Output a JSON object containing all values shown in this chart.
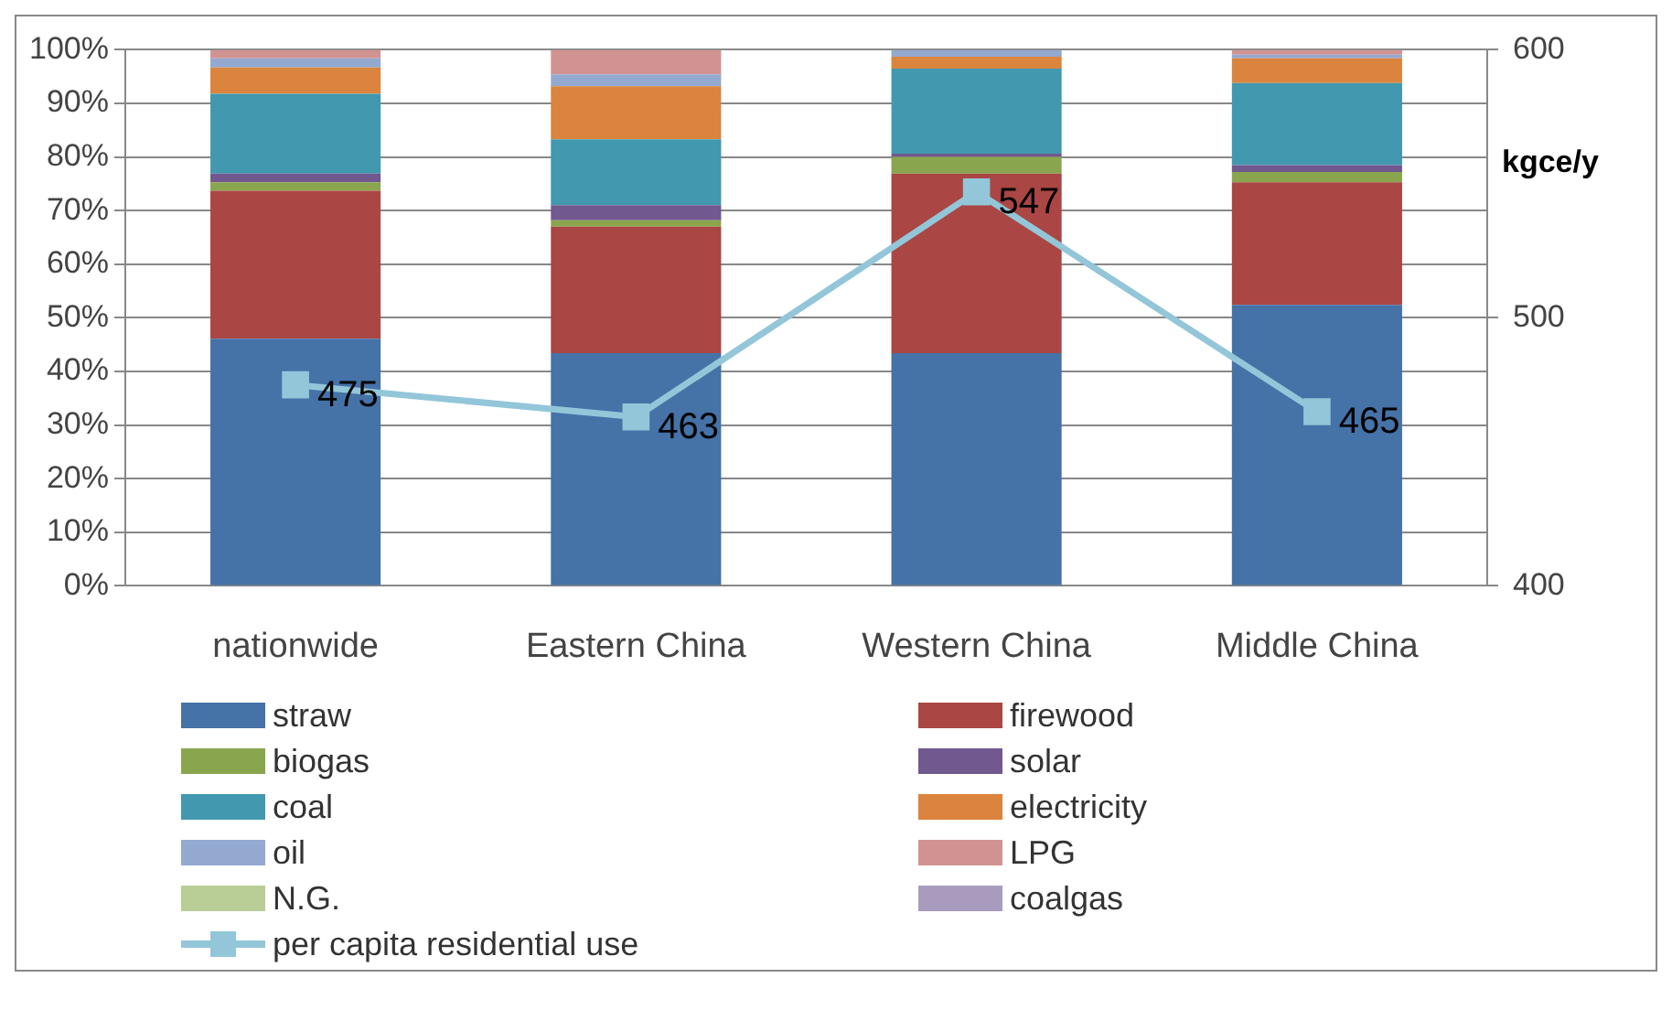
{
  "chart_data": {
    "type": "bar",
    "stacked": true,
    "categories": [
      "nationwide",
      "Eastern China",
      "Western China",
      "Middle China"
    ],
    "series": [
      {
        "name": "straw",
        "color": "#4572a7",
        "values": [
          46.1,
          43.4,
          43.4,
          52.4
        ]
      },
      {
        "name": "firewood",
        "color": "#aa4643",
        "values": [
          27.6,
          23.6,
          33.5,
          22.9
        ]
      },
      {
        "name": "biogas",
        "color": "#89a54e",
        "values": [
          1.6,
          1.2,
          3.1,
          1.9
        ]
      },
      {
        "name": "solar",
        "color": "#71588f",
        "values": [
          1.6,
          2.8,
          0.6,
          1.3
        ]
      },
      {
        "name": "coal",
        "color": "#4198af",
        "values": [
          14.9,
          12.3,
          15.9,
          15.3
        ]
      },
      {
        "name": "electricity",
        "color": "#db843d",
        "values": [
          4.9,
          9.9,
          2.2,
          4.6
        ]
      },
      {
        "name": "oil",
        "color": "#93a9cf",
        "values": [
          1.7,
          2.2,
          1.3,
          0.7
        ]
      },
      {
        "name": "LPG",
        "color": "#d19392",
        "values": [
          1.6,
          4.6,
          0,
          0.9
        ]
      },
      {
        "name": "N.G.",
        "color": "#b9cd96",
        "values": [
          0,
          0,
          0,
          0
        ]
      },
      {
        "name": "coalgas",
        "color": "#a99bbd",
        "values": [
          0,
          0,
          0,
          0
        ]
      },
      {
        "name": "per capita residential use",
        "type": "line",
        "axis": "y2",
        "marker": "square",
        "color": "#93c6d9",
        "values": [
          475,
          463,
          547,
          465
        ],
        "value_labels": [
          "475",
          "463",
          "547",
          "465"
        ]
      }
    ],
    "ylim": [
      0,
      100
    ],
    "yticks": [
      {
        "value": 0,
        "label": "0%"
      },
      {
        "value": 10,
        "label": "10%"
      },
      {
        "value": 20,
        "label": "20%"
      },
      {
        "value": 30,
        "label": "30%"
      },
      {
        "value": 40,
        "label": "40%"
      },
      {
        "value": 50,
        "label": "50%"
      },
      {
        "value": 60,
        "label": "60%"
      },
      {
        "value": 70,
        "label": "70%"
      },
      {
        "value": 80,
        "label": "80%"
      },
      {
        "value": 90,
        "label": "90%"
      },
      {
        "value": 100,
        "label": "100%"
      }
    ],
    "y2lim": [
      400,
      600
    ],
    "y2ticks": [
      400,
      500,
      600
    ],
    "y2label": "kgce/y",
    "grid": "y",
    "legend": "bottom"
  }
}
